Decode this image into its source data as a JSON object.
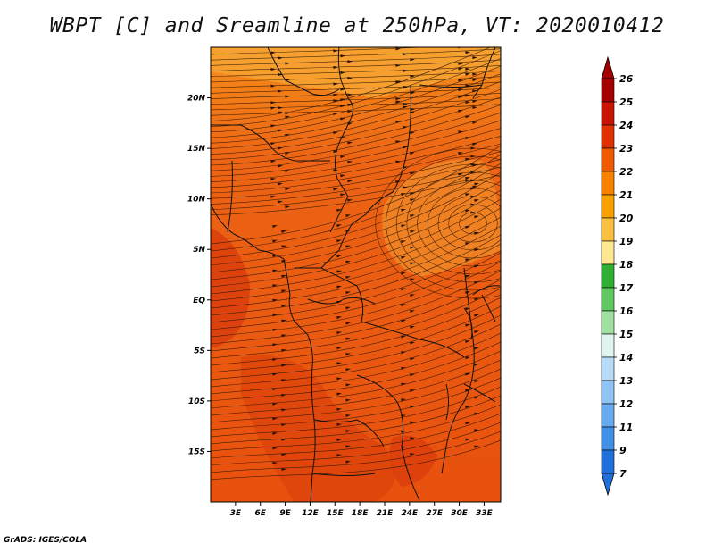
{
  "header": {
    "title": "WBPT [C] and Sreamline at 250hPa, VT: 2020010412"
  },
  "footer": {
    "credit": "GrADS: IGES/COLA"
  },
  "map": {
    "lat_ticks": [
      "20N",
      "15N",
      "10N",
      "5N",
      "EQ",
      "5S",
      "10S",
      "15S"
    ],
    "lon_ticks": [
      "3E",
      "6E",
      "9E",
      "12E",
      "15E",
      "18E",
      "21E",
      "24E",
      "27E",
      "30E",
      "33E"
    ],
    "lon_range": [
      0,
      35
    ],
    "lat_range": [
      -20,
      25
    ]
  },
  "colorbar": {
    "labels": [
      "26",
      "25",
      "24",
      "23",
      "22",
      "21",
      "20",
      "19",
      "18",
      "17",
      "16",
      "15",
      "14",
      "13",
      "12",
      "11",
      "9",
      "7"
    ],
    "colors": [
      "#a50000",
      "#c81400",
      "#e03200",
      "#f05a00",
      "#f88200",
      "#faa000",
      "#fcc040",
      "#fee890",
      "#30b030",
      "#60c860",
      "#a0e0a0",
      "#e0f4f0",
      "#b8dcf8",
      "#90c4f4",
      "#68aaf0",
      "#4090e8",
      "#2070dc"
    ],
    "top_arrow_color": "#a50000",
    "bottom_arrow_color": "#2070dc"
  }
}
